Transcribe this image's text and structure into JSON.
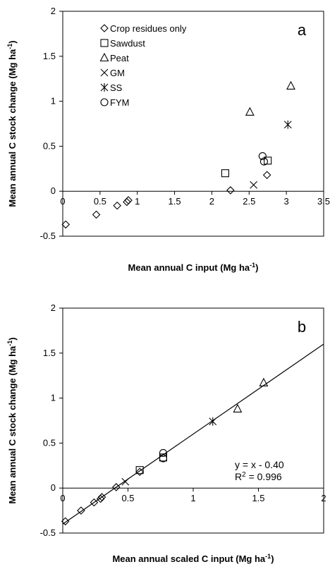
{
  "chart_data": [
    {
      "panel": "a",
      "type": "scatter",
      "xlabel": "Mean annual C input (Mg ha",
      "xlabel_sup": "-1",
      "xlabel_end": ")",
      "ylabel": "Mean annual C stock change (Mg ha",
      "ylabel_sup": "-1",
      "ylabel_end": ")",
      "xlim": [
        0,
        3.5
      ],
      "ylim": [
        -0.5,
        2
      ],
      "xticks": [
        {
          "v": 0,
          "t": "0"
        },
        {
          "v": 0.5,
          "t": "0.5"
        },
        {
          "v": 1,
          "t": "1"
        },
        {
          "v": 1.5,
          "t": "1.5"
        },
        {
          "v": 2,
          "t": "2"
        },
        {
          "v": 2.5,
          "t": "2.5"
        },
        {
          "v": 3,
          "t": "3"
        },
        {
          "v": 3.5,
          "t": "3.5"
        }
      ],
      "yticks": [
        {
          "v": -0.5,
          "t": "-0.5"
        },
        {
          "v": 0,
          "t": "0"
        },
        {
          "v": 0.5,
          "t": "0.5"
        },
        {
          "v": 1,
          "t": "1"
        },
        {
          "v": 1.5,
          "t": "1.5"
        },
        {
          "v": 2,
          "t": "2"
        }
      ],
      "legend": "top-left",
      "series": [
        {
          "name": "Crop residues only",
          "marker": "diamond",
          "points": [
            [
              0.04,
              -0.37
            ],
            [
              0.45,
              -0.26
            ],
            [
              0.73,
              -0.16
            ],
            [
              0.86,
              -0.12
            ],
            [
              0.88,
              -0.1
            ],
            [
              2.25,
              0.01
            ],
            [
              2.74,
              0.18
            ]
          ]
        },
        {
          "name": "Sawdust",
          "marker": "square",
          "points": [
            [
              2.18,
              0.2
            ],
            [
              2.75,
              0.34
            ]
          ]
        },
        {
          "name": "Peat",
          "marker": "triangle",
          "points": [
            [
              2.51,
              0.88
            ],
            [
              3.06,
              1.17
            ]
          ]
        },
        {
          "name": "GM",
          "marker": "x",
          "points": [
            [
              2.56,
              0.07
            ]
          ]
        },
        {
          "name": "SS",
          "marker": "star",
          "points": [
            [
              3.02,
              0.74
            ]
          ]
        },
        {
          "name": "FYM",
          "marker": "circle",
          "points": [
            [
              2.68,
              0.39
            ],
            [
              2.7,
              0.33
            ]
          ]
        }
      ]
    },
    {
      "panel": "b",
      "type": "scatter",
      "xlabel": "Mean annual scaled C input (Mg ha",
      "xlabel_sup": "-1",
      "xlabel_end": ")",
      "ylabel": "Mean annual C stock change (Mg ha",
      "ylabel_sup": "-1",
      "ylabel_end": ")",
      "xlim": [
        0,
        2
      ],
      "ylim": [
        -0.5,
        2
      ],
      "xticks": [
        {
          "v": 0,
          "t": "0"
        },
        {
          "v": 0.5,
          "t": "0.5"
        },
        {
          "v": 1,
          "t": "1"
        },
        {
          "v": 1.5,
          "t": "1.5"
        },
        {
          "v": 2,
          "t": "2"
        }
      ],
      "yticks": [
        {
          "v": -0.5,
          "t": "-0.5"
        },
        {
          "v": 0,
          "t": "0"
        },
        {
          "v": 0.5,
          "t": "0.5"
        },
        {
          "v": 1,
          "t": "1"
        },
        {
          "v": 1.5,
          "t": "1.5"
        },
        {
          "v": 2,
          "t": "2"
        }
      ],
      "fit_line": {
        "slope": 1,
        "intercept": -0.4
      },
      "equation": "y = x - 0.40",
      "r2_label": "R",
      "r2_sup": "2",
      "r2_value": " = 0.996",
      "series": [
        {
          "name": "Crop residues only",
          "marker": "diamond",
          "points": [
            [
              0.02,
              -0.37
            ],
            [
              0.14,
              -0.25
            ],
            [
              0.24,
              -0.16
            ],
            [
              0.29,
              -0.12
            ],
            [
              0.3,
              -0.1
            ],
            [
              0.41,
              0.01
            ],
            [
              0.59,
              0.18
            ]
          ]
        },
        {
          "name": "Sawdust",
          "marker": "square",
          "points": [
            [
              0.59,
              0.2
            ],
            [
              0.77,
              0.34
            ]
          ]
        },
        {
          "name": "Peat",
          "marker": "triangle",
          "points": [
            [
              1.34,
              0.88
            ],
            [
              1.54,
              1.17
            ]
          ]
        },
        {
          "name": "GM",
          "marker": "x",
          "points": [
            [
              0.48,
              0.07
            ]
          ]
        },
        {
          "name": "SS",
          "marker": "star",
          "points": [
            [
              1.15,
              0.74
            ]
          ]
        },
        {
          "name": "FYM",
          "marker": "circle",
          "points": [
            [
              0.77,
              0.39
            ],
            [
              0.77,
              0.33
            ]
          ]
        }
      ]
    }
  ]
}
